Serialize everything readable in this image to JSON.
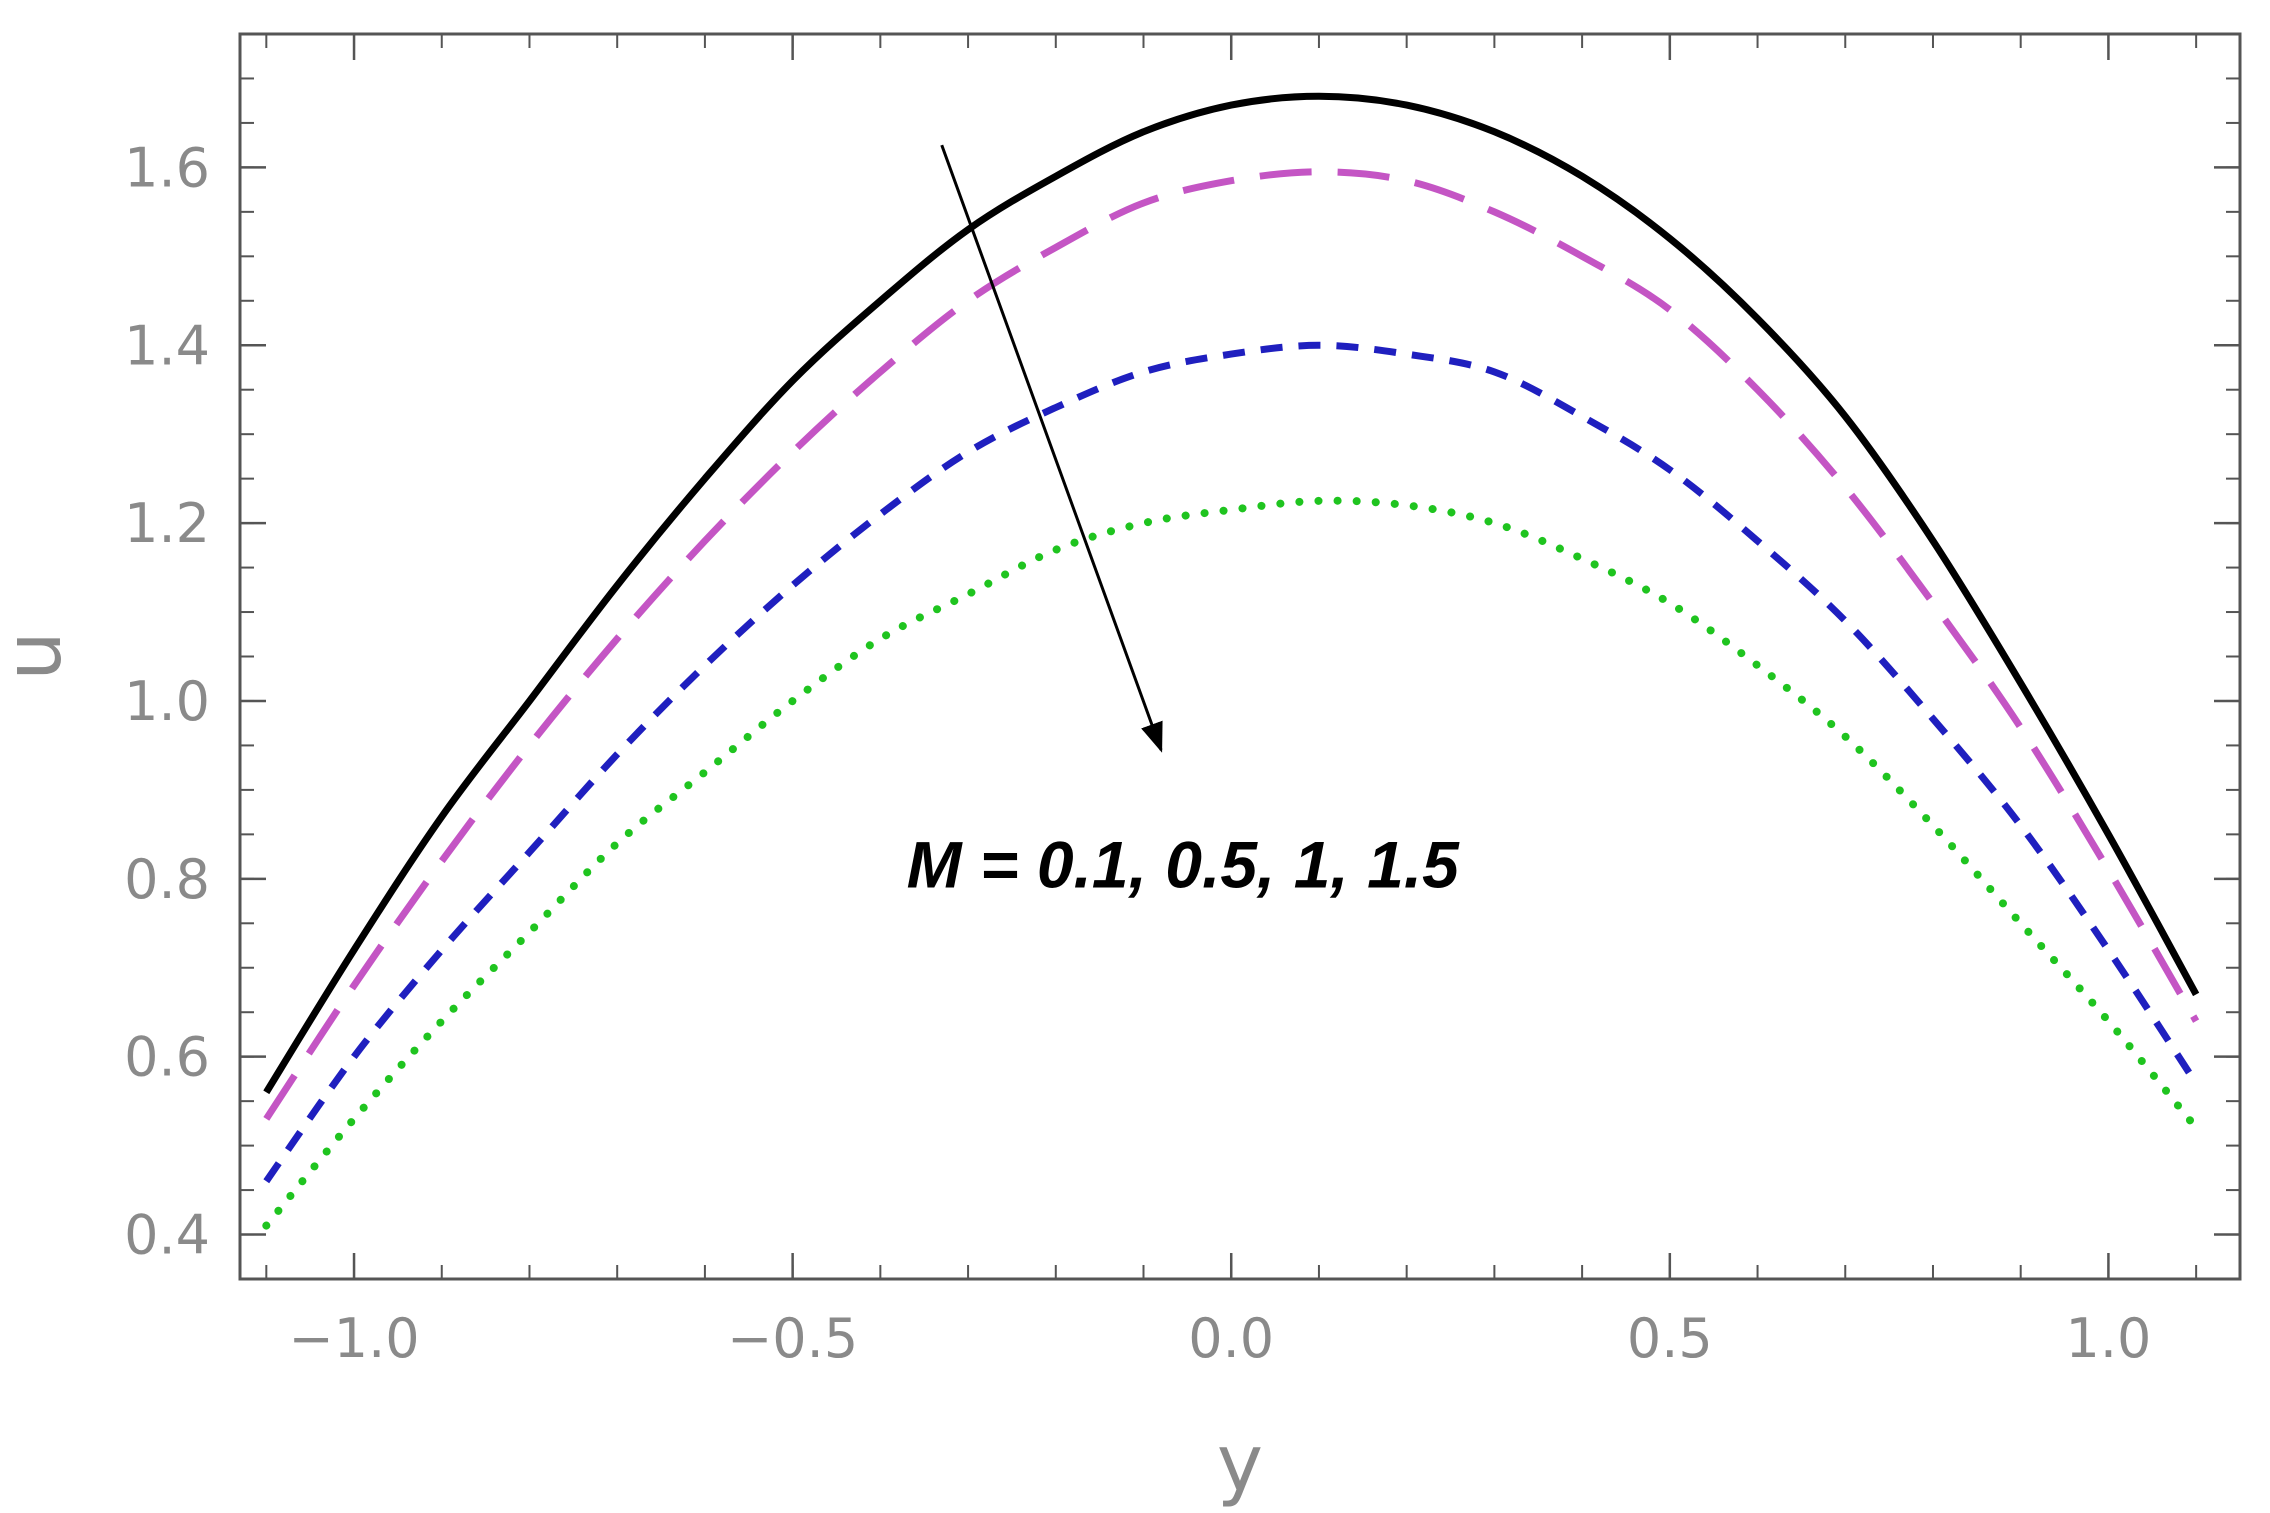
{
  "chart_data": {
    "type": "line",
    "title": "",
    "xlabel": "y",
    "ylabel": "u",
    "xlim": [
      -1.13,
      1.15
    ],
    "ylim": [
      0.35,
      1.75
    ],
    "grid": false,
    "legend": "none",
    "x_ticks": [
      {
        "value": -1.0,
        "label": "−1.0"
      },
      {
        "value": -0.5,
        "label": "−0.5"
      },
      {
        "value": 0.0,
        "label": "0.0"
      },
      {
        "value": 0.5,
        "label": "0.5"
      },
      {
        "value": 1.0,
        "label": "1.0"
      }
    ],
    "y_ticks": [
      {
        "value": 0.4,
        "label": "0.4"
      },
      {
        "value": 0.6,
        "label": "0.6"
      },
      {
        "value": 0.8,
        "label": "0.8"
      },
      {
        "value": 1.0,
        "label": "1.0"
      },
      {
        "value": 1.2,
        "label": "1.2"
      },
      {
        "value": 1.4,
        "label": "1.4"
      },
      {
        "value": 1.6,
        "label": "1.6"
      }
    ],
    "x_minor_step": 0.1,
    "y_minor_step": 0.05,
    "annotation": {
      "text": "M = 0.1, 0.5, 1, 1.5",
      "position": [
        -0.37,
        0.79
      ],
      "arrow_from": [
        -0.33,
        1.625
      ],
      "arrow_to": [
        -0.08,
        0.945
      ]
    },
    "series": [
      {
        "color": "#000000",
        "style": "solid",
        "x": [
          -1.1,
          -1.0,
          -0.9,
          -0.8,
          -0.7,
          -0.6,
          -0.5,
          -0.4,
          -0.3,
          -0.2,
          -0.1,
          0.0,
          0.1,
          0.2,
          0.3,
          0.4,
          0.5,
          0.6,
          0.7,
          0.8,
          0.9,
          1.0,
          1.1
        ],
        "y": [
          0.56,
          0.72,
          0.87,
          1.0,
          1.13,
          1.25,
          1.36,
          1.45,
          1.53,
          1.59,
          1.64,
          1.67,
          1.68,
          1.67,
          1.64,
          1.59,
          1.52,
          1.43,
          1.32,
          1.18,
          1.02,
          0.85,
          0.67
        ]
      },
      {
        "color": "#c455c4",
        "style": "long-dash",
        "x": [
          -1.1,
          -1.0,
          -0.9,
          -0.8,
          -0.7,
          -0.6,
          -0.5,
          -0.4,
          -0.3,
          -0.2,
          -0.1,
          0.0,
          0.1,
          0.2,
          0.3,
          0.4,
          0.5,
          0.6,
          0.7,
          0.8,
          0.9,
          1.0,
          1.1
        ],
        "y": [
          0.53,
          0.68,
          0.82,
          0.95,
          1.07,
          1.18,
          1.28,
          1.37,
          1.45,
          1.51,
          1.56,
          1.585,
          1.595,
          1.585,
          1.55,
          1.5,
          1.44,
          1.35,
          1.24,
          1.11,
          0.97,
          0.81,
          0.64
        ]
      },
      {
        "color": "#1f1fbf",
        "style": "short-dash",
        "x": [
          -1.1,
          -1.0,
          -0.9,
          -0.8,
          -0.7,
          -0.6,
          -0.5,
          -0.4,
          -0.3,
          -0.2,
          -0.1,
          0.0,
          0.1,
          0.2,
          0.3,
          0.4,
          0.5,
          0.6,
          0.7,
          0.8,
          0.9,
          1.0,
          1.1
        ],
        "y": [
          0.46,
          0.6,
          0.72,
          0.83,
          0.94,
          1.04,
          1.13,
          1.21,
          1.28,
          1.33,
          1.37,
          1.39,
          1.4,
          1.39,
          1.37,
          1.32,
          1.26,
          1.18,
          1.09,
          0.98,
          0.86,
          0.72,
          0.57
        ]
      },
      {
        "color": "#1fc41f",
        "style": "dotted",
        "x": [
          -1.1,
          -1.0,
          -0.9,
          -0.8,
          -0.7,
          -0.6,
          -0.5,
          -0.4,
          -0.3,
          -0.2,
          -0.1,
          0.0,
          0.1,
          0.2,
          0.3,
          0.4,
          0.5,
          0.6,
          0.7,
          0.8,
          0.9,
          1.0,
          1.1
        ],
        "y": [
          0.41,
          0.53,
          0.64,
          0.74,
          0.84,
          0.92,
          1.0,
          1.07,
          1.12,
          1.17,
          1.2,
          1.215,
          1.225,
          1.22,
          1.2,
          1.16,
          1.11,
          1.04,
          0.96,
          0.86,
          0.75,
          0.64,
          0.52
        ]
      }
    ]
  }
}
